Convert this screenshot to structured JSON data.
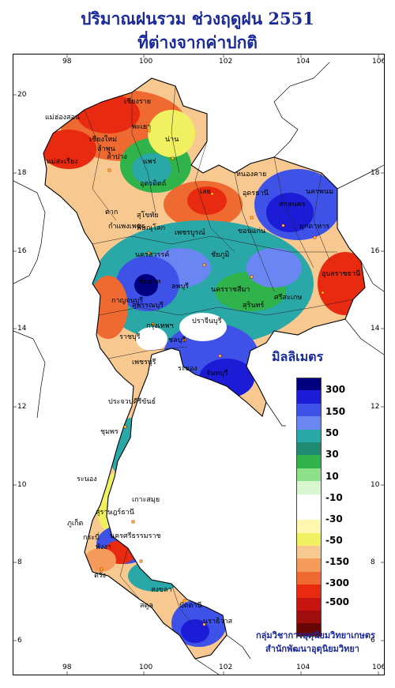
{
  "title_line1": "ปริมาณฝนรวม ช่วงฤดูฝน 2551",
  "title_line2": "ที่ต่างจากค่าปกติ",
  "legend": {
    "title": "มิลลิเมตร",
    "colors": [
      "#000080",
      "#1c1cd6",
      "#3f52e8",
      "#6a86f2",
      "#2aa7a7",
      "#1f8b73",
      "#2fb34a",
      "#8ee08a",
      "#d8f7d0",
      "#ffffff",
      "#ffffff",
      "#fff6b0",
      "#f0f060",
      "#f7c890",
      "#f49a5a",
      "#ee6a30",
      "#e82a10",
      "#c81410",
      "#a00e0e",
      "#6a0505"
    ],
    "labels": [
      "300",
      "150",
      "50",
      "30",
      "10",
      "-10",
      "-30",
      "-50",
      "-150",
      "-300",
      "-500"
    ]
  },
  "axes": {
    "top_ticks": [
      "98",
      "100",
      "102",
      "104",
      "106"
    ],
    "bottom_ticks": [
      "98",
      "100",
      "102",
      "104",
      "106"
    ],
    "left_ticks": [
      "20",
      "18",
      "16",
      "14",
      "12",
      "10",
      "8",
      "6"
    ],
    "right_ticks": [
      "18",
      "16",
      "14",
      "12",
      "10",
      "8",
      "6"
    ]
  },
  "provinces": [
    "แม่ฮ่องสอน",
    "เชียงราย",
    "เชียงใหม่",
    "ลำพูน",
    "พะเยา",
    "น่าน",
    "ลำปาง",
    "แพร่",
    "แม่สะเรียง",
    "อุตรดิตถ์",
    "ตาก",
    "สุโขทัย",
    "เลย",
    "หนองคาย",
    "อุดรธานี",
    "นครพนม",
    "สกลนคร",
    "มุกดาหาร",
    "พิษณุโลก",
    "กำแพงเพชร",
    "เพชรบูรณ์",
    "ขอนแก่น",
    "นครสวรรค์",
    "ชัยภูมิ",
    "อุบลราชธานี",
    "ชัยนาท",
    "ลพบุรี",
    "นครราชสีมา",
    "สุพรรณบุรี",
    "กาญจนบุรี",
    "สุรินทร์",
    "ศรีสะเกษ",
    "กรุงเทพฯ",
    "ปราจีนบุรี",
    "ราชบุรี",
    "ชลบุรี",
    "เพชรบุรี",
    "ระยอง",
    "จันทบุรี",
    "ประจวบคีรีขันธ์",
    "ชุมพร",
    "ระนอง",
    "เกาะสมุย",
    "สุราษฎร์ธานี",
    "ภูเก็ต",
    "นครศรีธรรมราช",
    "พังงา",
    "ตรัง",
    "สตูล",
    "สงขลา",
    "ปัตตานี",
    "นราธิวาส",
    "กระบี่"
  ],
  "credits": {
    "line1": "กลุ่มวิชาการอุตุนิยมวิทยาเกษตร",
    "line2": "สำนักพัฒนาอุตุนิยมวิทยา"
  }
}
